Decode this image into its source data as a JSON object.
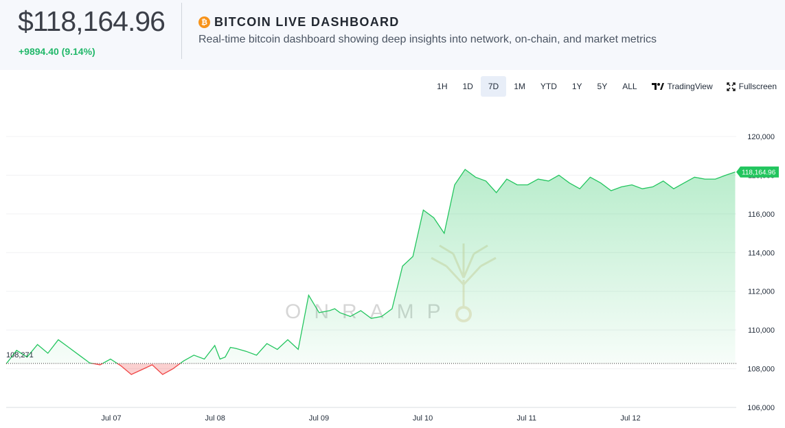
{
  "header": {
    "price": "$118,164.96",
    "change": "+9894.40 (9.14%)",
    "title": "BITCOIN LIVE DASHBOARD",
    "subtitle": "Real-time bitcoin dashboard showing deep insights into network, on-chain, and market metrics",
    "icon": "bitcoin-icon",
    "icon_glyph": "₿"
  },
  "toolbar": {
    "timeframes": [
      "1H",
      "1D",
      "7D",
      "1M",
      "YTD",
      "1Y",
      "5Y",
      "ALL"
    ],
    "active": "7D",
    "tradingview_label": "TradingView",
    "fullscreen_label": "Fullscreen"
  },
  "chart": {
    "watermark": "ONRAMP",
    "baseline_label": "108,271",
    "last_label": "118,164.96"
  },
  "chart_data": {
    "type": "area",
    "title": "",
    "xlabel": "",
    "ylabel": "",
    "x_ticks": [
      "Jul 07",
      "Jul 08",
      "Jul 09",
      "Jul 10",
      "Jul 11",
      "Jul 12"
    ],
    "y_ticks": [
      120000,
      118000,
      116000,
      114000,
      112000,
      110000,
      108000,
      106000
    ],
    "y_tick_labels": [
      "120,000",
      "118,000",
      "116,000",
      "114,000",
      "112,000",
      "110,000",
      "108,000",
      "106,000"
    ],
    "ylim": [
      106000,
      120000
    ],
    "baseline": 108271,
    "last_value": 118164.96,
    "grid": true,
    "colors": {
      "up": "#22c55e",
      "down": "#ef4444",
      "price_up": "#22b86a",
      "bitcoin": "#f7931a"
    },
    "series": [
      {
        "x": [
          0,
          0.1,
          0.2,
          0.3,
          0.4,
          0.5,
          0.6,
          0.7,
          0.8,
          0.9,
          1.0,
          1.1,
          1.2,
          1.3,
          1.4,
          1.5,
          1.6,
          1.7,
          1.8,
          1.9,
          2.0,
          2.05,
          2.1,
          2.15,
          2.2,
          2.3,
          2.4,
          2.5,
          2.6,
          2.7,
          2.8,
          2.9,
          3.0,
          3.1,
          3.15,
          3.2,
          3.3,
          3.4,
          3.5,
          3.6,
          3.7,
          3.8,
          3.9,
          4.0,
          4.1,
          4.2,
          4.3,
          4.4,
          4.5,
          4.6,
          4.7,
          4.8,
          4.9,
          5.0,
          5.1,
          5.2,
          5.3,
          5.4,
          5.5,
          5.6,
          5.7,
          5.8,
          5.9,
          6.0,
          6.1,
          6.2,
          6.3,
          6.4,
          6.5,
          6.6,
          6.7,
          6.8,
          6.9,
          6.99
        ],
        "values": [
          108250,
          108950,
          108600,
          109250,
          108800,
          109500,
          109100,
          108700,
          108300,
          108200,
          108500,
          108150,
          107700,
          107950,
          108200,
          107700,
          108000,
          108400,
          108700,
          108500,
          109200,
          108500,
          108600,
          109100,
          109050,
          108900,
          108700,
          109300,
          109000,
          109500,
          109000,
          111800,
          110900,
          111000,
          111100,
          110900,
          110700,
          111000,
          110600,
          110700,
          111100,
          113300,
          113800,
          116200,
          115800,
          115000,
          117500,
          118300,
          117900,
          117700,
          117100,
          117800,
          117500,
          117500,
          117800,
          117700,
          118000,
          117600,
          117300,
          117900,
          117600,
          117200,
          117400,
          117500,
          117300,
          117400,
          117700,
          117300,
          117600,
          117900,
          117800,
          117800,
          118000,
          118165
        ]
      }
    ]
  }
}
